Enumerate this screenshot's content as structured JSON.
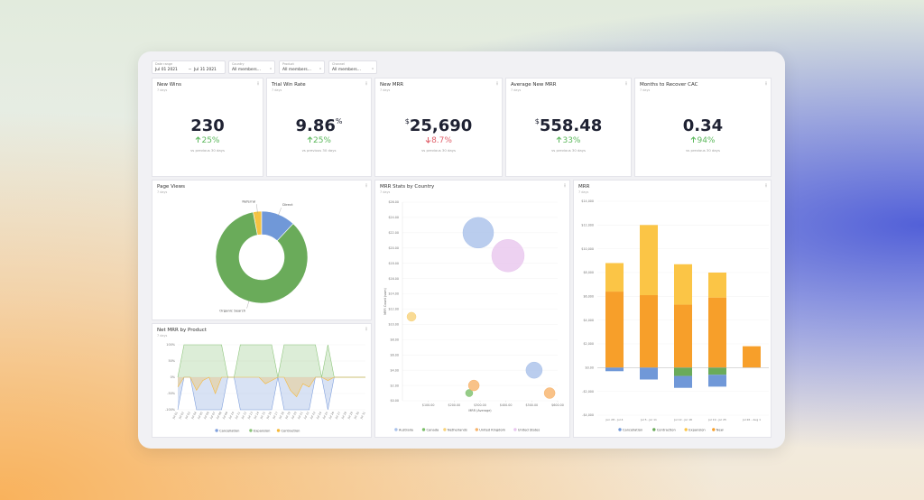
{
  "filters": [
    {
      "label": "Date range",
      "value": "Jul 01 2021",
      "value2": "Jul 31 2021"
    },
    {
      "label": "Country",
      "value": "All members..."
    },
    {
      "label": "Product",
      "value": "All members..."
    },
    {
      "label": "Channel",
      "value": "All members..."
    }
  ],
  "kpis": [
    {
      "title": "New Wins",
      "subtitle": "7 days",
      "value": "230",
      "change": "25%",
      "direction": "up",
      "comparison": "vs previous 30 days"
    },
    {
      "title": "Trial Win Rate",
      "subtitle": "7 days",
      "value": "9.86",
      "unit": "%",
      "change": "25%",
      "direction": "up",
      "comparison": "vs previous 30 days"
    },
    {
      "title": "New MRR",
      "subtitle": "7 days",
      "currency": "$",
      "value": "25,690",
      "change": "8.7%",
      "direction": "down",
      "comparison": "vs previous 30 days"
    },
    {
      "title": "Average New MRR",
      "subtitle": "7 days",
      "currency": "$",
      "value": "558.48",
      "change": "33%",
      "direction": "up",
      "comparison": "vs previous 30 days"
    },
    {
      "title": "Months to Recover CAC",
      "subtitle": "7 days",
      "value": "0.34",
      "change": "94%",
      "direction": "up",
      "comparison": "vs previous 30 days"
    }
  ],
  "chart_data": [
    {
      "type": "pie",
      "title": "Page Views",
      "subtitle": "7 days",
      "categories": [
        "Referral",
        "Direct",
        "Organic Search"
      ],
      "values": [
        3,
        12,
        85
      ],
      "colors": [
        "#f5c342",
        "#7098d8",
        "#6aab5a"
      ]
    },
    {
      "type": "area",
      "title": "Net MRR by Product",
      "subtitle": "7 days",
      "categories": [
        "Jul 01",
        "Jul 02",
        "Jul 03",
        "Jul 04",
        "Jul 05",
        "Jul 06",
        "Jul 07",
        "Jul 08",
        "Jul 09",
        "Jul 10",
        "Jul 11",
        "Jul 12",
        "Jul 13",
        "Jul 14",
        "Jul 15",
        "Jul 16",
        "Jul 17",
        "Jul 18",
        "Jul 19",
        "Jul 20",
        "Jul 21",
        "Jul 22",
        "Jul 23",
        "Jul 24",
        "Jul 25",
        "Jul 26",
        "Jul 27",
        "Jul 28",
        "Jul 29",
        "Jul 30",
        "Jul 31"
      ],
      "series": [
        {
          "name": "Cancellation",
          "color": "#7f9fdc",
          "values": [
            -100,
            0,
            0,
            -100,
            -100,
            -100,
            -100,
            -100,
            0,
            0,
            -100,
            -100,
            -100,
            -100,
            -100,
            -100,
            0,
            -100,
            -100,
            -100,
            -100,
            -100,
            0,
            0,
            -100,
            0,
            0,
            0,
            0,
            0,
            0
          ]
        },
        {
          "name": "Expansion",
          "color": "#8cc57a",
          "values": [
            0,
            100,
            100,
            100,
            100,
            100,
            100,
            100,
            0,
            0,
            100,
            100,
            100,
            100,
            100,
            100,
            0,
            100,
            100,
            100,
            100,
            100,
            100,
            0,
            100,
            0,
            0,
            0,
            0,
            0,
            0
          ]
        },
        {
          "name": "Contraction",
          "color": "#f6b93b",
          "values": [
            -30,
            0,
            0,
            -40,
            -10,
            0,
            -50,
            0,
            0,
            0,
            0,
            0,
            0,
            0,
            -20,
            -10,
            0,
            0,
            -40,
            -60,
            -20,
            -30,
            0,
            0,
            -10,
            0,
            0,
            0,
            0,
            0,
            0
          ]
        }
      ],
      "ylim": [
        -100,
        100
      ],
      "yticks": [
        {
          "value": -100,
          "label": "-100%"
        },
        {
          "value": -50,
          "label": "-50%"
        },
        {
          "value": 0,
          "label": "0%"
        },
        {
          "value": 50,
          "label": "50%"
        },
        {
          "value": 100,
          "label": "100%"
        }
      ],
      "legend": "bottom"
    },
    {
      "type": "bubble",
      "title": "MRR Stats by Country",
      "subtitle": "7 days",
      "xlabel": "MRR (Average)",
      "ylabel": "MRR Count (sum)",
      "series": [
        {
          "name": "Australia",
          "color": "#a9c1ea",
          "x": [
            293,
            509
          ],
          "values": [
            22,
            4
          ],
          "sizes": [
            34,
            18
          ]
        },
        {
          "name": "Canada",
          "color": "#7cbf6a",
          "x": [
            258
          ],
          "values": [
            1
          ],
          "sizes": [
            8
          ]
        },
        {
          "name": "Netherlands",
          "color": "#f7d27a",
          "x": [
            35
          ],
          "values": [
            11
          ],
          "sizes": [
            10
          ]
        },
        {
          "name": "United Kingdom",
          "color": "#f7b36a",
          "x": [
            276,
            569
          ],
          "values": [
            2,
            1
          ],
          "sizes": [
            12,
            12
          ]
        },
        {
          "name": "United States",
          "color": "#e8c6ee",
          "x": [
            408
          ],
          "values": [
            19
          ],
          "sizes": [
            36
          ]
        }
      ],
      "xlim": [
        0,
        600
      ],
      "xticks": [
        {
          "value": 100,
          "label": "$100.00"
        },
        {
          "value": 200,
          "label": "$200.00"
        },
        {
          "value": 300,
          "label": "$300.00"
        },
        {
          "value": 400,
          "label": "$400.00"
        },
        {
          "value": 500,
          "label": "$500.00"
        },
        {
          "value": 600,
          "label": "$600.00"
        }
      ],
      "ylim": [
        0,
        26
      ],
      "yticks": [
        {
          "value": 0,
          "label": "$0.00"
        },
        {
          "value": 2,
          "label": "$2.00"
        },
        {
          "value": 4,
          "label": "$4.00"
        },
        {
          "value": 6,
          "label": "$6.00"
        },
        {
          "value": 8,
          "label": "$8.00"
        },
        {
          "value": 10,
          "label": "$10.00"
        },
        {
          "value": 12,
          "label": "$12.00"
        },
        {
          "value": 14,
          "label": "$14.00"
        },
        {
          "value": 16,
          "label": "$16.00"
        },
        {
          "value": 18,
          "label": "$18.00"
        },
        {
          "value": 20,
          "label": "$20.00"
        },
        {
          "value": 22,
          "label": "$22.00"
        },
        {
          "value": 24,
          "label": "$24.00"
        },
        {
          "value": 26,
          "label": "$26.00"
        }
      ],
      "grid": true,
      "legend": "bottom"
    },
    {
      "type": "stacked_bar",
      "title": "MRR",
      "subtitle": "7 days",
      "categories": [
        "Jun 28 - Jul 4",
        "Jul 5 - Jul 11",
        "Jul 12 - Jul 18",
        "Jul 19 - Jul 25",
        "Jul 26 - Aug 1"
      ],
      "series": [
        {
          "name": "Cancellation",
          "color": "#7098d8",
          "values": [
            -300,
            -1000,
            -1000,
            -1000,
            0
          ]
        },
        {
          "name": "Contraction",
          "color": "#6aab5a",
          "values": [
            0,
            0,
            -700,
            -600,
            0
          ]
        },
        {
          "name": "Expansion",
          "color": "#fbc546",
          "values": [
            2400,
            5900,
            3400,
            2100,
            0
          ]
        },
        {
          "name": "New",
          "color": "#f79f2a",
          "values": [
            6400,
            6100,
            5300,
            5900,
            1800
          ]
        }
      ],
      "ylim": [
        -4000,
        14000
      ],
      "yticks": [
        {
          "value": -4000,
          "label": "-$4,000"
        },
        {
          "value": -2000,
          "label": "-$2,000"
        },
        {
          "value": 0,
          "label": "$0.00"
        },
        {
          "value": 2000,
          "label": "$2,000"
        },
        {
          "value": 4000,
          "label": "$4,000"
        },
        {
          "value": 6000,
          "label": "$6,000"
        },
        {
          "value": 8000,
          "label": "$8,000"
        },
        {
          "value": 10000,
          "label": "$10,000"
        },
        {
          "value": 12000,
          "label": "$12,000"
        },
        {
          "value": 14000,
          "label": "$14,000"
        }
      ],
      "grid": true,
      "legend": "bottom"
    }
  ]
}
